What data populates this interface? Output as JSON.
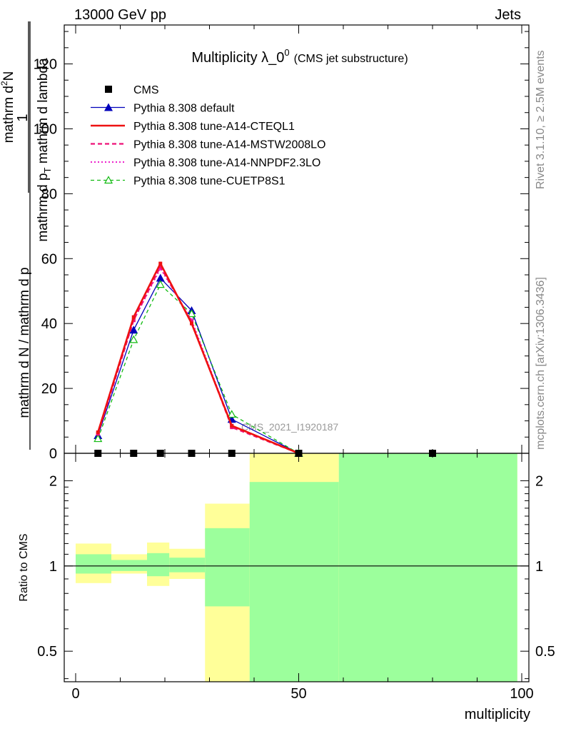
{
  "header": {
    "left": "13000 GeV pp",
    "right": "Jets"
  },
  "side_labels": {
    "upper": "Rivet 3.1.10, ≥ 2.5M events",
    "lower": "mcplots.cern.ch [arXiv:1306.3436]"
  },
  "watermark": "CMS_2021_I1920187",
  "title": {
    "main": "Multiplicity λ_0",
    "superscript": "0",
    "sub": "(CMS jet substructure)"
  },
  "y_axis_label": {
    "prefix": "1",
    "prefix_den": "mathrm d N / mathrm d p",
    "num": "mathrm d",
    "num_sup": "2",
    "num_tail": "N",
    "den": "mathrm d p",
    "den_sub": "T",
    "den_tail": " mathrm d lambda"
  },
  "ratio_label": "Ratio to CMS",
  "x_axis_label": "multiplicity",
  "colors": {
    "cms": "#000000",
    "default": "#0000bb",
    "cteql1": "#ee1111",
    "mstw": "#ee1177",
    "nnpdf": "#ee22cc",
    "cuetp8s1": "#11bb11",
    "band_inner": "#9cff9c",
    "band_outer": "#ffff99"
  },
  "chart_data": {
    "type": "line",
    "x_range": [
      -2,
      100
    ],
    "main_ylim": [
      0,
      132
    ],
    "ratio_ylim": [
      0.39,
      2.5
    ],
    "ratio_log": true,
    "x_ticks": [
      0,
      50,
      100
    ],
    "main_y_ticks": [
      0,
      20,
      40,
      60,
      80,
      100,
      120
    ],
    "ratio_y_ticks": [
      0.5,
      1,
      2
    ],
    "legend": [
      {
        "key": "cms",
        "label": "CMS",
        "style": "marker-square"
      },
      {
        "key": "default",
        "label": "Pythia 8.308 default",
        "style": "solid-triangle"
      },
      {
        "key": "cteql1",
        "label": "Pythia 8.308 tune-A14-CTEQL1",
        "style": "solid-thick"
      },
      {
        "key": "mstw",
        "label": "Pythia 8.308 tune-A14-MSTW2008LO",
        "style": "dashed"
      },
      {
        "key": "nnpdf",
        "label": "Pythia 8.308 tune-A14-NNPDF2.3LO",
        "style": "dotted"
      },
      {
        "key": "cuetp8s1",
        "label": "Pythia 8.308 tune-CUETP8S1",
        "style": "dashed-open-triangle"
      }
    ],
    "cms_points": {
      "x": [
        5,
        13,
        19,
        26,
        35,
        50,
        80
      ],
      "y": [
        0,
        0,
        0,
        0,
        0,
        0,
        0
      ]
    },
    "series": [
      {
        "key": "default",
        "x": [
          5,
          13,
          19,
          26,
          35,
          50
        ],
        "y": [
          5.5,
          38,
          54,
          44,
          10.5,
          0
        ]
      },
      {
        "key": "cuetp8s1",
        "x": [
          5,
          13,
          19,
          26,
          35,
          50
        ],
        "y": [
          4.5,
          35,
          52,
          43,
          12,
          0
        ]
      },
      {
        "key": "nnpdf",
        "x": [
          5,
          13,
          19,
          26,
          35,
          50
        ],
        "y": [
          6,
          41,
          57,
          41,
          8.5,
          0
        ]
      },
      {
        "key": "mstw",
        "x": [
          5,
          13,
          19,
          26,
          35,
          50
        ],
        "y": [
          6,
          41,
          57.5,
          40.5,
          8,
          0
        ]
      },
      {
        "key": "cteql1",
        "x": [
          5,
          13,
          19,
          26,
          35,
          50
        ],
        "y": [
          6.5,
          42,
          58.5,
          40,
          8.5,
          0
        ]
      }
    ],
    "ratio_bands": [
      {
        "x0": 0,
        "x1": 8,
        "outer": [
          0.87,
          1.2
        ],
        "inner": [
          0.94,
          1.1
        ]
      },
      {
        "x0": 8,
        "x1": 16,
        "outer": [
          0.94,
          1.1
        ],
        "inner": [
          0.96,
          1.05
        ]
      },
      {
        "x0": 16,
        "x1": 21,
        "outer": [
          0.85,
          1.21
        ],
        "inner": [
          0.92,
          1.11
        ]
      },
      {
        "x0": 21,
        "x1": 29,
        "outer": [
          0.9,
          1.15
        ],
        "inner": [
          0.95,
          1.07
        ]
      },
      {
        "x0": 29,
        "x1": 39,
        "outer": [
          0.39,
          1.66
        ],
        "inner": [
          0.72,
          1.36
        ]
      },
      {
        "x0": 39,
        "x1": 59,
        "outer": [
          0.39,
          2.5
        ],
        "inner": [
          0.39,
          1.98
        ]
      },
      {
        "x0": 59,
        "x1": 99,
        "outer": [
          0.39,
          2.5
        ],
        "inner": [
          0.39,
          2.5
        ]
      }
    ],
    "ratio_reference": 1
  }
}
